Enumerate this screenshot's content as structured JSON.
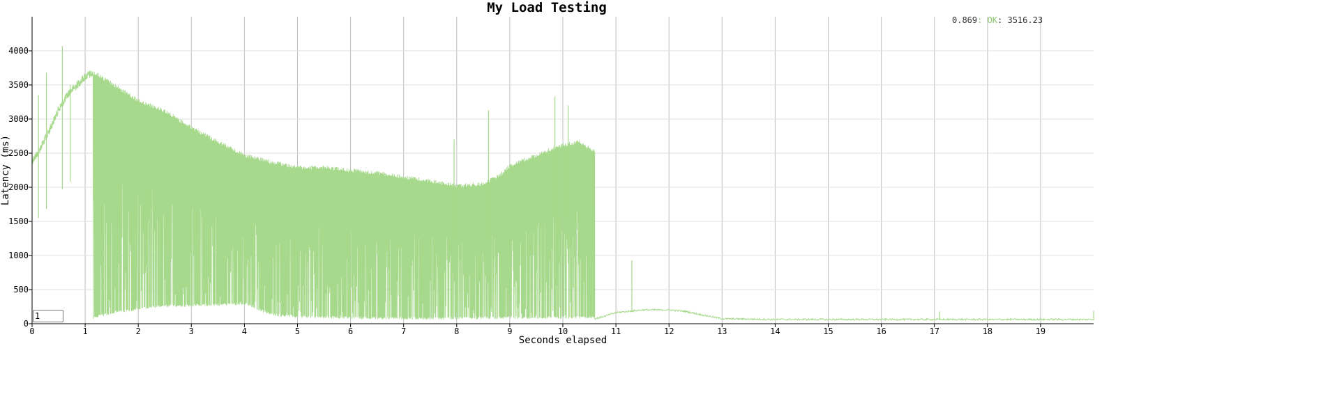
{
  "chart_data": {
    "type": "line",
    "title": "My Load Testing",
    "xlabel": "Seconds elapsed",
    "ylabel": "Latency (ms)",
    "xlim": [
      0,
      20
    ],
    "ylim": [
      0,
      4500
    ],
    "x_ticks": [
      "0",
      "1",
      "2",
      "3",
      "4",
      "5",
      "6",
      "7",
      "8",
      "9",
      "10",
      "11",
      "12",
      "13",
      "14",
      "15",
      "16",
      "17",
      "18",
      "19"
    ],
    "y_ticks": [
      "0",
      "500",
      "1000",
      "1500",
      "2000",
      "2500",
      "3000",
      "3500",
      "4000"
    ],
    "grid": true,
    "legend": {
      "position": "top-right",
      "value": "0.869",
      "sep1": ": ",
      "series": "OK",
      "sep2": ": ",
      "reading": "3516.23"
    },
    "series": [
      {
        "name": "OK",
        "color": "#a6d98b",
        "upper_envelope": [
          [
            0,
            2450
          ],
          [
            0.1,
            2550
          ],
          [
            0.3,
            2850
          ],
          [
            0.5,
            3200
          ],
          [
            0.7,
            3450
          ],
          [
            0.9,
            3600
          ],
          [
            1.0,
            3680
          ],
          [
            1.1,
            3720
          ],
          [
            1.2,
            3700
          ],
          [
            1.5,
            3550
          ],
          [
            2.0,
            3300
          ],
          [
            2.5,
            3150
          ],
          [
            3.0,
            2900
          ],
          [
            3.5,
            2700
          ],
          [
            4.0,
            2500
          ],
          [
            4.5,
            2400
          ],
          [
            5.0,
            2320
          ],
          [
            5.5,
            2320
          ],
          [
            6.0,
            2280
          ],
          [
            6.5,
            2240
          ],
          [
            7.0,
            2180
          ],
          [
            7.5,
            2120
          ],
          [
            7.8,
            2080
          ],
          [
            8.0,
            2050
          ],
          [
            8.5,
            2080
          ],
          [
            8.8,
            2200
          ],
          [
            9.0,
            2350
          ],
          [
            9.5,
            2500
          ],
          [
            10.0,
            2650
          ],
          [
            10.3,
            2700
          ],
          [
            10.6,
            2550
          ]
        ],
        "lower_envelope": [
          [
            1.15,
            70
          ],
          [
            1.5,
            140
          ],
          [
            2.0,
            200
          ],
          [
            2.5,
            240
          ],
          [
            3.0,
            250
          ],
          [
            3.5,
            260
          ],
          [
            4.0,
            280
          ],
          [
            4.5,
            120
          ],
          [
            5.0,
            80
          ],
          [
            6.0,
            70
          ],
          [
            7.0,
            60
          ],
          [
            8.0,
            60
          ],
          [
            9.0,
            70
          ],
          [
            10.0,
            70
          ],
          [
            10.6,
            80
          ]
        ],
        "tail": [
          [
            10.6,
            60
          ],
          [
            10.8,
            100
          ],
          [
            11.0,
            150
          ],
          [
            11.5,
            190
          ],
          [
            12.0,
            190
          ],
          [
            12.3,
            170
          ],
          [
            12.6,
            120
          ],
          [
            13.0,
            60
          ],
          [
            14.0,
            50
          ],
          [
            16.0,
            50
          ],
          [
            18.0,
            50
          ],
          [
            20.0,
            50
          ]
        ],
        "spikes": [
          [
            0.12,
            3350
          ],
          [
            0.27,
            3680
          ],
          [
            0.57,
            4070
          ],
          [
            0.72,
            3500
          ],
          [
            2.22,
            1600
          ],
          [
            7.95,
            2700
          ],
          [
            8.6,
            3130
          ],
          [
            9.85,
            3330
          ],
          [
            10.1,
            3200
          ],
          [
            11.3,
            930
          ],
          [
            17.1,
            180
          ],
          [
            20.0,
            190
          ]
        ]
      }
    ]
  },
  "controls": {
    "smoothing_value": "1"
  }
}
